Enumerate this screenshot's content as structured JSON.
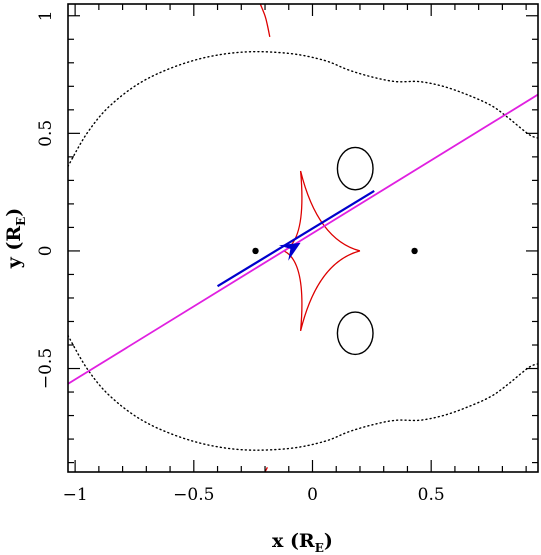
{
  "chart_data": {
    "type": "scatter",
    "xlabel": {
      "main": "x (R",
      "sub": "E",
      "close": ")"
    },
    "ylabel": {
      "main": "y (R",
      "sub": "E",
      "close": ")"
    },
    "xlim": [
      -1.03,
      0.95
    ],
    "ylim": [
      -0.94,
      1.05
    ],
    "x_ticks": [
      -1,
      -0.5,
      0,
      0.5
    ],
    "y_ticks": [
      -0.5,
      0,
      0.5,
      1
    ],
    "x_tick_labels": [
      "−1",
      "−0.5",
      "0",
      "0.5"
    ],
    "y_tick_labels": [
      "−0.5",
      "0",
      "0.5",
      "1"
    ],
    "grid": false,
    "colors": {
      "critical_curve": "#000000",
      "caustic": "#dd0000",
      "trajectory": "#e020e0",
      "source_track": "#0000cc",
      "lens": "#000000"
    },
    "lenses": [
      {
        "x": -0.24,
        "y": 0.0
      },
      {
        "x": 0.43,
        "y": 0.0
      }
    ],
    "trajectory_line": [
      {
        "x": -1.03,
        "y": -0.565
      },
      {
        "x": 0.95,
        "y": 0.665
      }
    ],
    "source_track": [
      {
        "x": -0.4,
        "y": -0.15
      },
      {
        "x": 0.26,
        "y": 0.255
      }
    ],
    "source_arrow_tip": {
      "x": -0.05,
      "y": 0.035
    },
    "central_caustic": {
      "cusps": [
        {
          "x": 0.2,
          "y": 0.0
        },
        {
          "x": -0.05,
          "y": 0.34
        },
        {
          "x": -0.12,
          "y": 0.0
        },
        {
          "x": -0.05,
          "y": -0.34
        }
      ],
      "center": {
        "x": 0.0,
        "y": 0.0
      }
    },
    "planetary_caustics": [
      [
        {
          "x": -0.22,
          "y": 1.05
        },
        {
          "x": -0.2,
          "y": 1.0
        },
        {
          "x": -0.19,
          "y": 0.96
        },
        {
          "x": -0.18,
          "y": 0.91
        }
      ],
      [
        {
          "x": -0.19,
          "y": -0.92
        },
        {
          "x": -0.2,
          "y": -0.94
        }
      ]
    ],
    "small_loops": [
      {
        "cx": 0.18,
        "cy": 0.35,
        "rx": 0.075,
        "ry": 0.09
      },
      {
        "cx": 0.18,
        "cy": -0.35,
        "rx": 0.075,
        "ry": 0.09
      }
    ],
    "outer_critical_curve": [
      {
        "x": -1.03,
        "y": 0.36
      },
      {
        "x": -0.95,
        "y": 0.5
      },
      {
        "x": -0.85,
        "y": 0.62
      },
      {
        "x": -0.7,
        "y": 0.73
      },
      {
        "x": -0.5,
        "y": 0.81
      },
      {
        "x": -0.3,
        "y": 0.845
      },
      {
        "x": -0.1,
        "y": 0.84
      },
      {
        "x": 0.05,
        "y": 0.81
      },
      {
        "x": 0.15,
        "y": 0.77
      },
      {
        "x": 0.25,
        "y": 0.74
      },
      {
        "x": 0.35,
        "y": 0.72
      },
      {
        "x": 0.45,
        "y": 0.72
      },
      {
        "x": 0.55,
        "y": 0.7
      },
      {
        "x": 0.65,
        "y": 0.665
      },
      {
        "x": 0.75,
        "y": 0.62
      },
      {
        "x": 0.82,
        "y": 0.57
      },
      {
        "x": 0.88,
        "y": 0.52
      },
      {
        "x": 0.92,
        "y": 0.49
      },
      {
        "x": 0.95,
        "y": 0.48
      }
    ]
  }
}
